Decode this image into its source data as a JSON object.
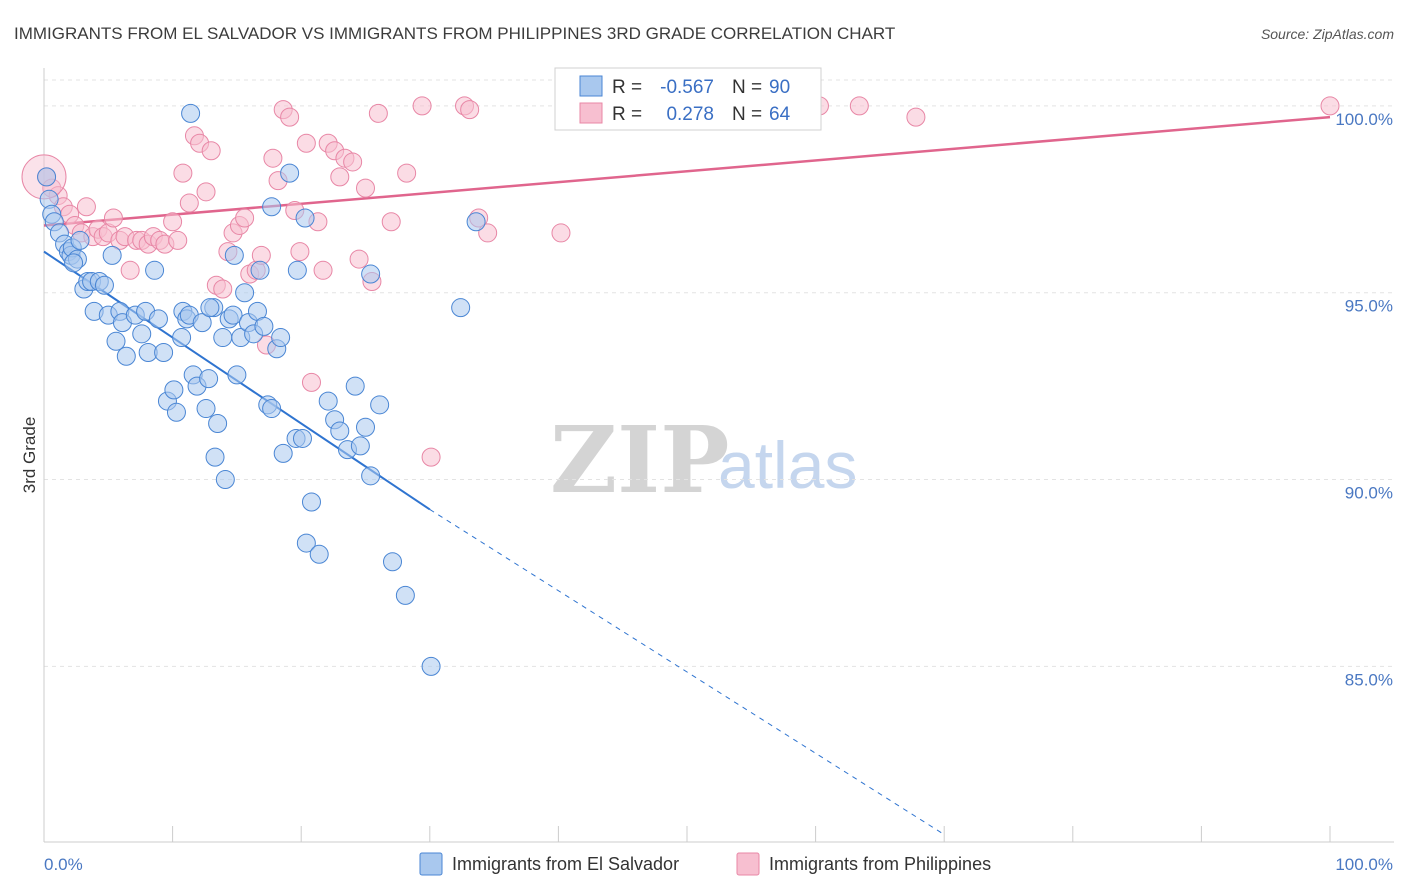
{
  "title": "IMMIGRANTS FROM EL SALVADOR VS IMMIGRANTS FROM PHILIPPINES 3RD GRADE CORRELATION CHART",
  "source": "Source: ZipAtlas.com",
  "watermark": {
    "zip": "ZIP",
    "atlas": "atlas"
  },
  "colors": {
    "blue_fill": "#a9c8ee",
    "blue_stroke": "#4a86d4",
    "blue_line": "#2f74d0",
    "pink_fill": "#f7bfd0",
    "pink_stroke": "#e887a6",
    "pink_line": "#e0658d",
    "tick_text": "#4a78c2",
    "grid": "#e3e3e3"
  },
  "stats": {
    "r_label": "R =",
    "n_label": "N =",
    "blue": {
      "r": "-0.567",
      "n": "90"
    },
    "pink": {
      "r": "0.278",
      "n": "64"
    }
  },
  "chart_data": {
    "type": "scatter",
    "title": "IMMIGRANTS FROM EL SALVADOR VS IMMIGRANTS FROM PHILIPPINES 3RD GRADE CORRELATION CHART",
    "xlabel": "",
    "ylabel": "3rd Grade",
    "xlim": [
      0,
      100
    ],
    "ylim": [
      80.3,
      100.8
    ],
    "x_tick_labels": [
      "0.0%",
      "100.0%"
    ],
    "y_ticks": [
      85,
      90,
      95,
      100
    ],
    "y_tick_labels": [
      "85.0%",
      "90.0%",
      "95.0%",
      "100.0%"
    ],
    "grid": true,
    "legend_position": "bottom-center",
    "series": [
      {
        "name": "Immigrants from El Salvador",
        "color": "#a9c8ee",
        "trend": {
          "x": [
            0,
            30
          ],
          "y": [
            96.1,
            89.2
          ],
          "dashed_to": [
            70,
            80.5
          ]
        },
        "points": [
          [
            0.2,
            98.1
          ],
          [
            0.4,
            97.5
          ],
          [
            0.6,
            97.1
          ],
          [
            0.8,
            96.9
          ],
          [
            1.2,
            96.6
          ],
          [
            1.6,
            96.3
          ],
          [
            1.9,
            96.1
          ],
          [
            2.1,
            96.0
          ],
          [
            2.2,
            96.2
          ],
          [
            2.6,
            95.9
          ],
          [
            2.3,
            95.8
          ],
          [
            2.8,
            96.4
          ],
          [
            3.1,
            95.1
          ],
          [
            3.4,
            95.3
          ],
          [
            3.7,
            95.3
          ],
          [
            3.9,
            94.5
          ],
          [
            4.3,
            95.3
          ],
          [
            4.7,
            95.2
          ],
          [
            5.3,
            96.0
          ],
          [
            5.0,
            94.4
          ],
          [
            5.6,
            93.7
          ],
          [
            5.9,
            94.5
          ],
          [
            6.4,
            93.3
          ],
          [
            6.1,
            94.2
          ],
          [
            7.1,
            94.4
          ],
          [
            7.6,
            93.9
          ],
          [
            7.9,
            94.5
          ],
          [
            8.1,
            93.4
          ],
          [
            8.6,
            95.6
          ],
          [
            8.9,
            94.3
          ],
          [
            9.3,
            93.4
          ],
          [
            9.6,
            92.1
          ],
          [
            10.1,
            92.4
          ],
          [
            10.3,
            91.8
          ],
          [
            10.7,
            93.8
          ],
          [
            10.8,
            94.5
          ],
          [
            11.1,
            94.3
          ],
          [
            11.3,
            94.4
          ],
          [
            11.6,
            92.8
          ],
          [
            11.9,
            92.5
          ],
          [
            12.3,
            94.2
          ],
          [
            12.8,
            92.7
          ],
          [
            12.6,
            91.9
          ],
          [
            13.2,
            94.6
          ],
          [
            13.5,
            91.5
          ],
          [
            13.3,
            90.6
          ],
          [
            13.9,
            93.8
          ],
          [
            14.1,
            90.0
          ],
          [
            14.4,
            94.3
          ],
          [
            14.7,
            94.4
          ],
          [
            15.0,
            92.8
          ],
          [
            15.3,
            93.8
          ],
          [
            15.6,
            95.0
          ],
          [
            15.9,
            94.2
          ],
          [
            16.3,
            93.9
          ],
          [
            16.6,
            94.5
          ],
          [
            16.8,
            95.6
          ],
          [
            17.1,
            94.1
          ],
          [
            17.4,
            92.0
          ],
          [
            17.7,
            91.9
          ],
          [
            18.1,
            93.5
          ],
          [
            18.4,
            93.8
          ],
          [
            18.6,
            90.7
          ],
          [
            19.1,
            98.2
          ],
          [
            19.6,
            91.1
          ],
          [
            20.1,
            91.1
          ],
          [
            20.4,
            88.3
          ],
          [
            20.8,
            89.4
          ],
          [
            21.4,
            88.0
          ],
          [
            22.1,
            92.1
          ],
          [
            22.6,
            91.6
          ],
          [
            23.0,
            91.3
          ],
          [
            23.6,
            90.8
          ],
          [
            24.2,
            92.5
          ],
          [
            24.6,
            90.9
          ],
          [
            25.0,
            91.4
          ],
          [
            25.4,
            90.1
          ],
          [
            26.1,
            92.0
          ],
          [
            27.1,
            87.8
          ],
          [
            28.1,
            86.9
          ],
          [
            30.1,
            85.0
          ],
          [
            32.4,
            94.6
          ],
          [
            33.6,
            96.9
          ],
          [
            14.8,
            96.0
          ],
          [
            17.7,
            97.3
          ],
          [
            19.7,
            95.6
          ],
          [
            12.9,
            94.6
          ],
          [
            11.4,
            99.8
          ],
          [
            20.3,
            97.0
          ],
          [
            25.4,
            95.5
          ]
        ]
      },
      {
        "name": "Immigrants from Philippines",
        "color": "#f7bfd0",
        "trend": {
          "x": [
            0,
            100
          ],
          "y": [
            96.8,
            99.7
          ]
        },
        "points": [
          [
            0.2,
            98.1
          ],
          [
            0.6,
            97.8
          ],
          [
            1.1,
            97.6
          ],
          [
            1.5,
            97.3
          ],
          [
            2.0,
            97.1
          ],
          [
            2.4,
            96.8
          ],
          [
            2.9,
            96.6
          ],
          [
            3.3,
            97.3
          ],
          [
            3.8,
            96.5
          ],
          [
            4.2,
            96.7
          ],
          [
            4.6,
            96.5
          ],
          [
            5.0,
            96.6
          ],
          [
            5.4,
            97.0
          ],
          [
            5.9,
            96.4
          ],
          [
            6.3,
            96.5
          ],
          [
            6.7,
            95.6
          ],
          [
            7.2,
            96.4
          ],
          [
            7.6,
            96.4
          ],
          [
            8.1,
            96.3
          ],
          [
            8.5,
            96.5
          ],
          [
            9.0,
            96.4
          ],
          [
            9.4,
            96.3
          ],
          [
            10.0,
            96.9
          ],
          [
            10.4,
            96.4
          ],
          [
            10.8,
            98.2
          ],
          [
            11.3,
            97.4
          ],
          [
            11.7,
            99.2
          ],
          [
            12.1,
            99.0
          ],
          [
            12.6,
            97.7
          ],
          [
            13.0,
            98.8
          ],
          [
            13.4,
            95.2
          ],
          [
            13.9,
            95.1
          ],
          [
            14.3,
            96.1
          ],
          [
            14.7,
            96.6
          ],
          [
            15.2,
            96.8
          ],
          [
            15.6,
            97.0
          ],
          [
            16.0,
            95.5
          ],
          [
            16.5,
            95.6
          ],
          [
            16.9,
            96.0
          ],
          [
            17.3,
            93.6
          ],
          [
            17.8,
            98.6
          ],
          [
            18.2,
            98.0
          ],
          [
            18.6,
            99.9
          ],
          [
            19.1,
            99.7
          ],
          [
            19.5,
            97.2
          ],
          [
            19.9,
            96.1
          ],
          [
            20.4,
            99.0
          ],
          [
            20.8,
            92.6
          ],
          [
            21.3,
            96.9
          ],
          [
            21.7,
            95.6
          ],
          [
            22.1,
            99.0
          ],
          [
            22.6,
            98.8
          ],
          [
            23.0,
            98.1
          ],
          [
            23.4,
            98.6
          ],
          [
            24.0,
            98.5
          ],
          [
            24.5,
            95.9
          ],
          [
            25.0,
            97.8
          ],
          [
            25.5,
            95.3
          ],
          [
            26.0,
            99.8
          ],
          [
            27.0,
            96.9
          ],
          [
            28.2,
            98.2
          ],
          [
            29.4,
            100.0
          ],
          [
            30.1,
            90.6
          ],
          [
            40.2,
            96.6
          ]
        ]
      }
    ]
  },
  "extra_pink_points": [
    [
      32.7,
      100.0
    ],
    [
      33.1,
      99.9
    ],
    [
      33.8,
      97.0
    ],
    [
      34.5,
      96.6
    ],
    [
      60.3,
      100.0
    ],
    [
      63.4,
      100.0
    ],
    [
      67.8,
      99.7
    ],
    [
      100.0,
      100.0
    ]
  ]
}
